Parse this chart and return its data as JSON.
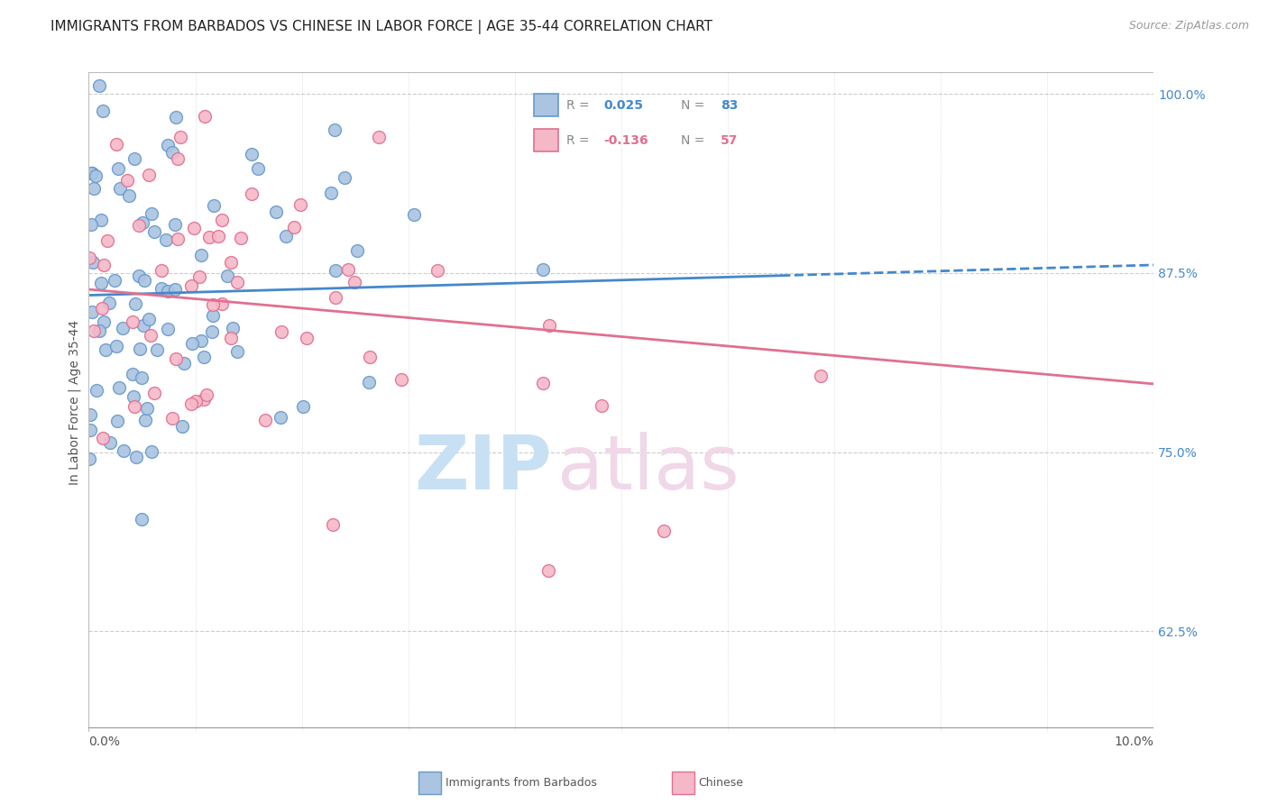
{
  "title": "IMMIGRANTS FROM BARBADOS VS CHINESE IN LABOR FORCE | AGE 35-44 CORRELATION CHART",
  "source": "Source: ZipAtlas.com",
  "ylabel": "In Labor Force | Age 35-44",
  "legend_label_blue": "Immigrants from Barbados",
  "legend_label_pink": "Chinese",
  "blue_color": "#aac4e2",
  "blue_edge_color": "#6699cc",
  "pink_color": "#f5b8c8",
  "pink_edge_color": "#e07090",
  "blue_line_color": "#4488cc",
  "pink_line_color": "#e07090",
  "grid_color": "#cccccc",
  "background_color": "#ffffff",
  "xmin": 0.0,
  "xmax": 0.1,
  "ymin": 0.555,
  "ymax": 1.015,
  "ytick_vals": [
    0.625,
    0.75,
    0.875,
    1.0
  ],
  "ytick_labels": [
    "62.5%",
    "75.0%",
    "87.5%",
    "100.0%"
  ],
  "blue_R": 0.025,
  "blue_N": 83,
  "pink_R": -0.136,
  "pink_N": 57,
  "title_fontsize": 11,
  "source_fontsize": 9,
  "tick_fontsize": 10,
  "ylabel_fontsize": 10,
  "legend_fontsize": 10,
  "watermark_zip_color": "#c8e0f4",
  "watermark_atlas_color": "#f0d8e8"
}
